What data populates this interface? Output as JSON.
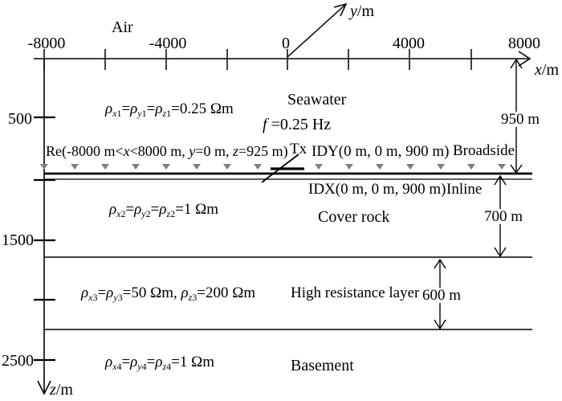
{
  "colors": {
    "line": "#000000",
    "receiver_marker": "#7f7f7f",
    "background": "#ffffff"
  },
  "axes": {
    "x": {
      "label": [
        {
          "text": "x",
          "italic": true
        },
        {
          "text": "/m"
        }
      ],
      "ticks": [
        "-8000",
        "-4000",
        "0",
        "4000",
        "8000"
      ]
    },
    "y": {
      "label": [
        {
          "text": "y",
          "italic": true
        },
        {
          "text": "/m"
        }
      ]
    },
    "z": {
      "label": [
        {
          "text": "z",
          "italic": true
        },
        {
          "text": "/m"
        }
      ],
      "ticks": [
        "500",
        "1500",
        "2500"
      ]
    }
  },
  "layers": {
    "air": {
      "name": "Air"
    },
    "seawater": {
      "name": "Seawater",
      "thickness": "950 m",
      "resistivity": [
        {
          "text": "ρ",
          "italic": true
        },
        {
          "text": "x",
          "italic": true,
          "sub": true
        },
        {
          "text": "1",
          "sub": true
        },
        {
          "text": "="
        },
        {
          "text": "ρ",
          "italic": true
        },
        {
          "text": "y",
          "italic": true,
          "sub": true
        },
        {
          "text": "1",
          "sub": true
        },
        {
          "text": "="
        },
        {
          "text": "ρ",
          "italic": true
        },
        {
          "text": "z",
          "italic": true,
          "sub": true
        },
        {
          "text": "1",
          "sub": true
        },
        {
          "text": "=0.25 Ωm"
        }
      ]
    },
    "cover_rock": {
      "name": "Cover rock",
      "thickness": "700 m",
      "resistivity": [
        {
          "text": "ρ",
          "italic": true
        },
        {
          "text": "x",
          "italic": true,
          "sub": true
        },
        {
          "text": "2",
          "sub": true
        },
        {
          "text": "="
        },
        {
          "text": "ρ",
          "italic": true
        },
        {
          "text": "y",
          "italic": true,
          "sub": true
        },
        {
          "text": "2",
          "sub": true
        },
        {
          "text": "="
        },
        {
          "text": "ρ",
          "italic": true
        },
        {
          "text": "z",
          "italic": true,
          "sub": true
        },
        {
          "text": "2",
          "sub": true
        },
        {
          "text": "=1 Ωm"
        }
      ]
    },
    "high_resistance": {
      "name": "High resistance layer",
      "thickness": "600 m",
      "resistivity": [
        {
          "text": "ρ",
          "italic": true
        },
        {
          "text": "x",
          "italic": true,
          "sub": true
        },
        {
          "text": "3",
          "sub": true
        },
        {
          "text": "="
        },
        {
          "text": "ρ",
          "italic": true
        },
        {
          "text": "y",
          "italic": true,
          "sub": true
        },
        {
          "text": "3",
          "sub": true
        },
        {
          "text": "=50 Ωm, "
        },
        {
          "text": "ρ",
          "italic": true
        },
        {
          "text": "z",
          "italic": true,
          "sub": true
        },
        {
          "text": "3",
          "sub": true
        },
        {
          "text": "=200 Ωm"
        }
      ]
    },
    "basement": {
      "name": "Basement",
      "resistivity": [
        {
          "text": "ρ",
          "italic": true
        },
        {
          "text": "x",
          "italic": true,
          "sub": true
        },
        {
          "text": "4",
          "sub": true
        },
        {
          "text": "="
        },
        {
          "text": "ρ",
          "italic": true
        },
        {
          "text": "y",
          "italic": true,
          "sub": true
        },
        {
          "text": "4",
          "sub": true
        },
        {
          "text": "="
        },
        {
          "text": "ρ",
          "italic": true
        },
        {
          "text": "z",
          "italic": true,
          "sub": true
        },
        {
          "text": "4",
          "sub": true
        },
        {
          "text": "=1 Ωm"
        }
      ]
    }
  },
  "source": {
    "frequency": [
      {
        "text": "f",
        "italic": true
      },
      {
        "text": " =0.25 Hz"
      }
    ],
    "tx_label": "Tx",
    "idy_label": "IDY(0 m, 0 m, 900 m)",
    "broadside_label": "Broadside",
    "idx_label": "IDX(0 m, 0 m, 900 m)",
    "inline_label": "Inline"
  },
  "receivers": {
    "marker_icon": "down-triangle-icon",
    "marker_count": 15,
    "label": [
      {
        "text": "Re(-8000 m<"
      },
      {
        "text": "x",
        "italic": true
      },
      {
        "text": "<8000 m, "
      },
      {
        "text": "y",
        "italic": true
      },
      {
        "text": "=0 m, "
      },
      {
        "text": "z",
        "italic": true
      },
      {
        "text": "=925 m)"
      }
    ]
  }
}
